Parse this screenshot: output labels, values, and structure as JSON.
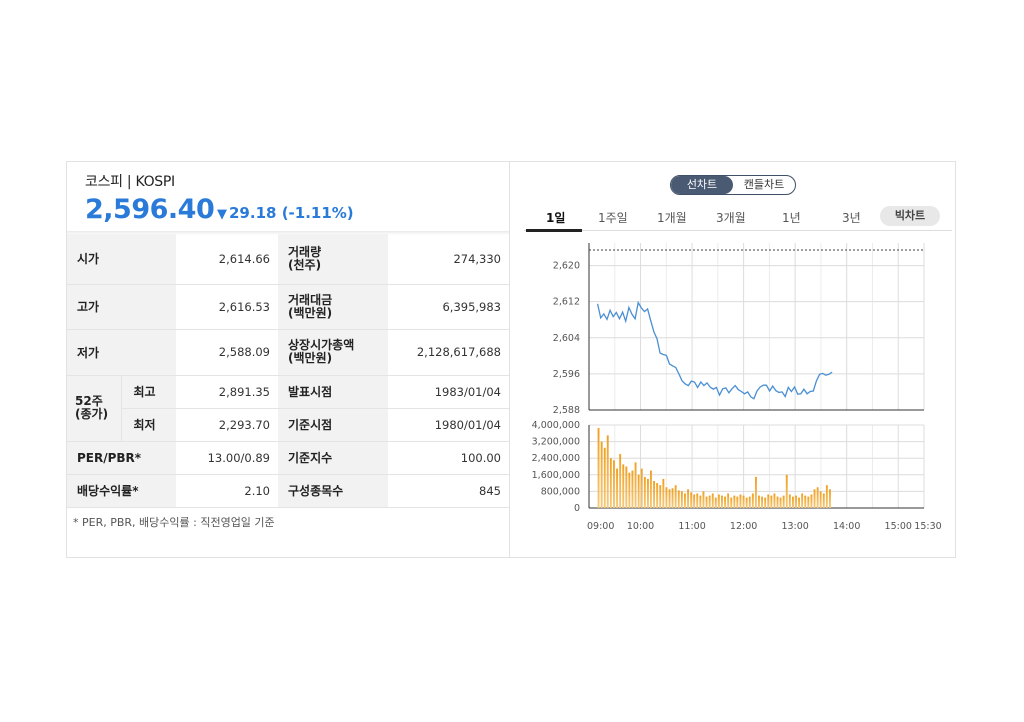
{
  "header": {
    "title": "코스피 | KOSPI",
    "price": "2,596.40",
    "change": "29.18",
    "change_pct": "(-1.11%)",
    "down_color": "#2a7ad9"
  },
  "table": {
    "open": {
      "label": "시가",
      "value": "2,614.66"
    },
    "high": {
      "label": "고가",
      "value": "2,616.53"
    },
    "low": {
      "label": "저가",
      "value": "2,588.09"
    },
    "week52": {
      "label": "52주\n(종가)",
      "max_label": "최고",
      "max_value": "2,891.35",
      "min_label": "최저",
      "min_value": "2,293.70"
    },
    "per": {
      "label": "PER/PBR*",
      "value": "13.00/0.89"
    },
    "div": {
      "label": "배당수익률*",
      "value": "2.10"
    },
    "volume": {
      "label": "거래량\n(천주)",
      "value": "274,330"
    },
    "amount": {
      "label": "거래대금\n(백만원)",
      "value": "6,395,983"
    },
    "mcap": {
      "label": "상장시가총액\n(백만원)",
      "value": "2,128,617,688"
    },
    "announce": {
      "label": "발표시점",
      "value": "1983/01/04"
    },
    "base_date": {
      "label": "기준시점",
      "value": "1980/01/04"
    },
    "base_index": {
      "label": "기준지수",
      "value": "100.00"
    },
    "constituents": {
      "label": "구성종목수",
      "value": "845"
    }
  },
  "footnote": "* PER, PBR, 배당수익률 : 직전영업일 기준",
  "chart_controls": {
    "line_chart": "선차트",
    "candle_chart": "캔들차트",
    "periods": [
      "1일",
      "1주일",
      "1개월",
      "3개월",
      "1년",
      "3년"
    ],
    "active_period": "1일",
    "big_chart": "빅차트"
  },
  "chart_data": [
    {
      "type": "line",
      "series": [
        {
          "values": [
            2611.5,
            2608.4,
            2609.3,
            2608.1,
            2610.1,
            2608.7,
            2609.6,
            2608.2,
            2609.7,
            2607.7,
            2610.7,
            2609.2,
            2608.2,
            2611.8,
            2610.6,
            2609.8,
            2610.4,
            2607.8,
            2605.3,
            2603.8,
            2600.6,
            2600.3,
            2600.1,
            2598.2,
            2597.8,
            2597.4,
            2596.0,
            2594.5,
            2593.8,
            2593.4,
            2594.4,
            2594.2,
            2593.0,
            2594.2,
            2593.4,
            2594.0,
            2593.1,
            2592.6,
            2593.0,
            2591.3,
            2592.7,
            2592.9,
            2591.8,
            2592.7,
            2593.4,
            2592.5,
            2592.1,
            2591.6,
            2592.0,
            2590.9,
            2590.5,
            2592.2,
            2593.1,
            2593.5,
            2593.5,
            2592.2,
            2593.3,
            2592.3,
            2591.9,
            2592.0,
            2591.0,
            2593.0,
            2592.1,
            2593.1,
            2591.5,
            2591.6,
            2592.6,
            2591.6,
            2592.1,
            2592.2,
            2594.5,
            2595.9,
            2596.1,
            2595.7,
            2595.9,
            2596.4
          ]
        }
      ],
      "y_ticks": [
        "2,620",
        "2,612",
        "2,604",
        "2,596",
        "2,588"
      ],
      "ylim": [
        2588,
        2625
      ],
      "prev_close_line": "dotted"
    },
    {
      "type": "bar",
      "series": [
        {
          "values": [
            3850000,
            3200000,
            2900000,
            3500000,
            2400000,
            2300000,
            1900000,
            2600000,
            2100000,
            2000000,
            1700000,
            1800000,
            2200000,
            1600000,
            1900000,
            1500000,
            1400000,
            1800000,
            1300000,
            1200000,
            1100000,
            1400000,
            1000000,
            900000,
            950000,
            1100000,
            850000,
            800000,
            700000,
            900000,
            750000,
            650000,
            700000,
            600000,
            800000,
            550000,
            600000,
            700000,
            500000,
            650000,
            600000,
            550000,
            700000,
            500000,
            600000,
            550000,
            650000,
            600000,
            500000,
            550000,
            700000,
            1500000,
            600000,
            550000,
            500000,
            650000,
            600000,
            700000,
            550000,
            500000,
            600000,
            1600000,
            650000,
            550000,
            600000,
            500000,
            700000,
            600000,
            550000,
            650000,
            900000,
            1000000,
            800000,
            700000,
            1100000,
            900000
          ]
        }
      ],
      "y_ticks": [
        "4,000,000",
        "3,200,000",
        "2,400,000",
        "1,600,000",
        "800,000",
        "0"
      ],
      "ylim": [
        0,
        4000000
      ]
    }
  ],
  "x_ticks": [
    "09:00",
    "10:00",
    "11:00",
    "12:00",
    "13:00",
    "14:00",
    "15:00",
    "15:30"
  ],
  "colors": {
    "line": "#4a8fd4",
    "bar_top": "#f0a020",
    "bar_bottom": "#f5c97a",
    "grid": "#dcdcdc"
  }
}
